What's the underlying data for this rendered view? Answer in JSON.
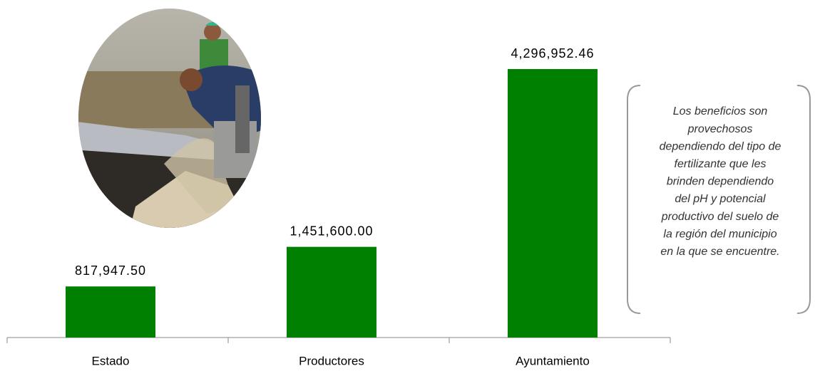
{
  "chart_data": {
    "type": "bar",
    "categories": [
      "Estado",
      "Productores",
      "Ayuntamiento"
    ],
    "values": [
      817947.5,
      1451600,
      4296952.46
    ],
    "value_labels": [
      "817,947.50",
      "1,451,600.00",
      "4,296,952.46"
    ],
    "color": "#008000",
    "note": [
      "Los beneficios son",
      "provechosos",
      "dependiendo del tipo de",
      "fertilizante que les",
      "brinden dependiendo",
      "del pH y potencial",
      "productivo del suelo de",
      "la región del municipio",
      "en la que se encuentre."
    ]
  }
}
